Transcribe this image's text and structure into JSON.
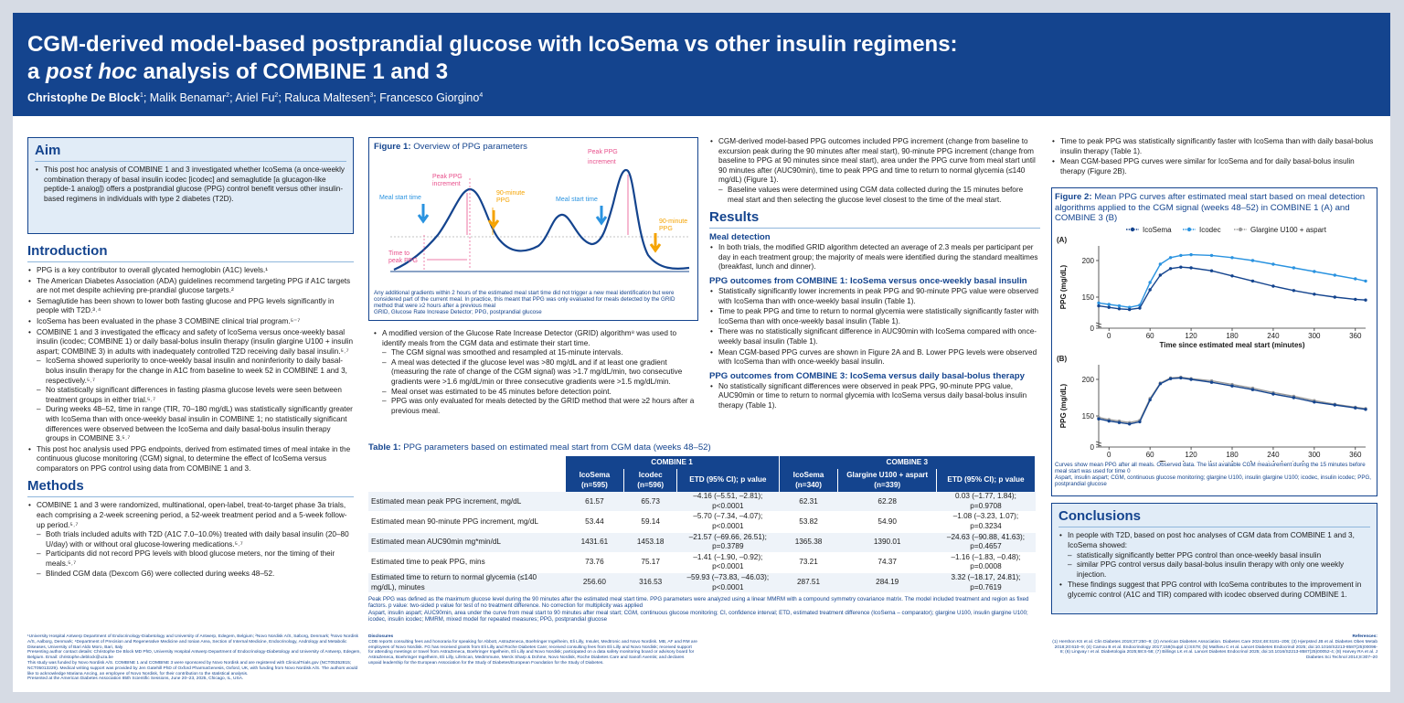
{
  "header": {
    "title_line1": "CGM-derived model-based postprandial glucose with IcoSema vs other insulin regimens:",
    "title_line2": "a post hoc analysis of COMBINE 1 and 3",
    "authors": [
      {
        "name": "Christophe De Block",
        "sup": "1"
      },
      {
        "name": "Malik Benamar",
        "sup": "2"
      },
      {
        "name": "Ariel Fu",
        "sup": "2"
      },
      {
        "name": "Raluca Maltesen",
        "sup": "3"
      },
      {
        "name": "Francesco Giorgino",
        "sup": "4"
      }
    ]
  },
  "aim": {
    "heading": "Aim",
    "text": "This post hoc analysis of COMBINE 1 and 3 investigated whether IcoSema (a once-weekly combination therapy of basal insulin icodec [icodec] and semaglutide [a glucagon-like peptide-1 analog]) offers a postprandial glucose (PPG) control benefit versus other insulin-based regimens in individuals with type 2 diabetes (T2D)."
  },
  "introduction": {
    "heading": "Introduction",
    "bullets": [
      "PPG is a key contributor to overall glycated hemoglobin (A1C) levels.¹",
      "The American Diabetes Association (ADA) guidelines recommend targeting PPG if A1C targets are not met despite achieving pre-prandial glucose targets.²",
      "Semaglutide has been shown to lower both fasting glucose and PPG levels significantly in people with T2D.³˒⁴",
      "IcoSema has been evaluated in the phase 3 COMBINE clinical trial program.⁵⁻⁷",
      "COMBINE 1 and 3 investigated the efficacy and safety of IcoSema versus once-weekly basal insulin (icodec; COMBINE 1) or daily basal-bolus insulin therapy (insulin glargine U100 + insulin aspart; COMBINE 3) in adults with inadequately controlled T2D receiving daily basal insulin.⁵˒⁷",
      "This post hoc analysis used PPG endpoints, derived from estimated times of meal intake in the continuous glucose monitoring (CGM) signal, to determine the effect of IcoSema versus comparators on PPG control using data from COMBINE 1 and 3."
    ],
    "sub_bullets": [
      "IcoSema showed superiority to once-weekly basal insulin and noninferiority to daily basal-bolus insulin therapy for the change in A1C from baseline to week 52 in COMBINE 1 and 3, respectively.⁵˒⁷",
      "No statistically significant differences in fasting plasma glucose levels were seen between treatment groups in either trial.⁵˒⁷",
      "During weeks 48–52, time in range (TIR, 70–180 mg/dL) was statistically significantly greater with IcoSema than with once-weekly basal insulin in COMBINE 1; no statistically significant differences were observed between the IcoSema and daily basal-bolus insulin therapy groups in COMBINE 3.⁵˒⁷"
    ]
  },
  "methods": {
    "heading": "Methods",
    "bullets": [
      "COMBINE 1 and 3 were randomized, multinational, open-label, treat-to-target phase 3a trials, each comprising a 2-week screening period, a 52-week treatment period and a 5-week follow-up period.⁵˒⁷"
    ],
    "sub_bullets": [
      "Both trials included adults with T2D (A1C 7.0–10.0%) treated with daily basal insulin (20–80 U/day) with or without oral glucose-lowering medications.⁵˒⁷",
      "Participants did not record PPG levels with blood glucose meters, nor the timing of their meals.⁵˒⁷",
      "Blinded CGM data (Dexcom G6) were collected during weeks 48–52."
    ]
  },
  "figure1": {
    "title": "Figure 1:",
    "subtitle": "Overview of PPG parameters",
    "labels": {
      "meal_start_1": "Meal start time",
      "meal_start_2": "Meal start time",
      "peak_increment": "Peak PPG increment",
      "min90": "90-minute PPG",
      "min90_2": "90-minute PPG",
      "time_to_peak": "Time to peak PPG",
      "peak_ppg": "Peak PPG increment"
    },
    "note": "Any additional gradients within 2 hours of the estimated meal start time did not trigger a new meal identification but were considered part of the current meal. In practice, this meant that PPG was only evaluated for meals detected by the GRID method that were ≥2 hours after a previous meal",
    "abbrev": "GRID, Glucose Rate Increase Detector; PPG, postprandial glucose"
  },
  "grid": {
    "bullet": "A modified version of the Glucose Rate Increase Detector (GRID) algorithm⁸ was used to identify meals from the CGM data and estimate their start time.",
    "sub_bullets": [
      "The CGM signal was smoothed and resampled at 15-minute intervals.",
      "A meal was detected if the glucose level was >80 mg/dL and if at least one gradient (measuring the rate of change of the CGM signal) was >1.7 mg/dL/min, two consecutive gradients were >1.6 mg/dL/min or three consecutive gradients were >1.5 mg/dL/min.",
      "Meal onset was estimated to be 45 minutes before detection point.",
      "PPG was only evaluated for meals detected by the GRID method that were ≥2 hours after a previous meal."
    ]
  },
  "table1": {
    "title": "Table 1:",
    "subtitle": "PPG parameters based on estimated meal start from CGM data (weeks 48–52)",
    "group1": "COMBINE 1",
    "group2": "COMBINE 3",
    "columns": [
      "IcoSema (n=595)",
      "Icodec (n=596)",
      "ETD (95% CI); p value",
      "IcoSema (n=340)",
      "Glargine U100 + aspart (n=339)",
      "ETD (95% CI); p value"
    ],
    "rows": [
      {
        "label": "Estimated mean peak PPG increment, mg/dL",
        "cells": [
          "61.57",
          "65.73",
          "–4.16 (–5.51, –2.81); p<0.0001",
          "62.31",
          "62.28",
          "0.03 (–1.77, 1.84); p=0.9708"
        ]
      },
      {
        "label": "Estimated mean 90-minute PPG increment, mg/dL",
        "cells": [
          "53.44",
          "59.14",
          "–5.70 (–7.34, –4.07); p<0.0001",
          "53.82",
          "54.90",
          "–1.08 (–3.23, 1.07); p=0.3234"
        ]
      },
      {
        "label": "Estimated mean AUC90min mg*min/dL",
        "cells": [
          "1431.61",
          "1453.18",
          "–21.57 (–69.66, 26.51); p=0.3789",
          "1365.38",
          "1390.01",
          "–24.63 (–90.88, 41.63); p=0.4657"
        ]
      },
      {
        "label": "Estimated time to peak PPG, mins",
        "cells": [
          "73.76",
          "75.17",
          "–1.41 (–1.90, –0.92); p<0.0001",
          "73.21",
          "74.37",
          "–1.16 (–1.83, –0.48); p=0.0008"
        ]
      },
      {
        "label": "Estimated time to return to normal glycemia (≤140 mg/dL), minutes",
        "cells": [
          "256.60",
          "316.53",
          "–59.93 (–73.83, –46.03); p<0.0001",
          "287.51",
          "284.19",
          "3.32 (–18.17, 24.81); p=0.7619"
        ]
      }
    ],
    "footnote": "Peak PPG was defined as the maximum glucose level during the 90 minutes after the estimated meal start time. PPG parameters were analyzed using a linear MMRM with a compound symmetry covariance matrix. The model included treatment and region as fixed factors. p value: two-sided p value for test of no treatment difference. No correction for multiplicity was applied",
    "abbrev": "Aspart, insulin aspart; AUC90min, area under the curve from meal start to 90 minutes after meal start; CGM, continuous glucose monitoring; CI, confidence interval; ETD, estimated treatment difference (IcoSema – comparator); glargine U100, insulin glargine U100; icodec, insulin icodec; MMRM, mixed model for repeated measures; PPG, postprandial glucose"
  },
  "col3": {
    "bullets": [
      "CGM-derived model-based PPG outcomes included PPG increment (change from baseline to excursion peak during the 90 minutes after meal start), 90-minute PPG increment (change from baseline to PPG at 90 minutes since meal start), area under the PPG curve from meal start until 90 minutes after (AUC90min), time to peak PPG and time to return to normal glycemia (≤140 mg/dL) (Figure 1)."
    ],
    "sub": "Baseline values were determined using CGM data collected during the 15 minutes before meal start and then selecting the glucose level closest to the time of the meal start.",
    "results_heading": "Results",
    "meal_heading": "Meal detection",
    "meal_bullet": "In both trials, the modified GRID algorithm detected an average of 2.3 meals per participant per day in each treatment group; the majority of meals were identified during the standard mealtimes (breakfast, lunch and dinner).",
    "c1_heading": "PPG outcomes from COMBINE 1: IcoSema versus once-weekly basal insulin",
    "c1_bullets": [
      "Statistically significantly lower increments in peak PPG and 90-minute PPG value were observed with IcoSema than with once-weekly basal insulin (Table 1).",
      "Time to peak PPG and time to return to normal glycemia were statistically significantly faster with IcoSema than with once-weekly basal insulin (Table 1).",
      "There was no statistically significant difference in AUC90min with IcoSema compared with once-weekly basal insulin (Table 1).",
      "Mean CGM-based PPG curves are shown in Figure 2A and B. Lower PPG levels were observed with IcoSema than with once-weekly basal insulin."
    ],
    "c3_heading": "PPG outcomes from COMBINE 3: IcoSema versus daily basal-bolus therapy",
    "c3_bullets": [
      "No statistically significant differences were observed in peak PPG, 90-minute PPG value, AUC90min or time to return to normal glycemia with IcoSema versus daily basal-bolus insulin therapy (Table 1)."
    ]
  },
  "col4": {
    "bullets": [
      "Time to peak PPG was statistically significantly faster with IcoSema than with daily basal-bolus insulin therapy (Table 1).",
      "Mean CGM-based PPG curves were similar for IcoSema and for daily basal-bolus insulin therapy (Figure 2B)."
    ]
  },
  "figure2": {
    "title": "Figure 2:",
    "subtitle": "Mean PPG curves after estimated meal start based on meal detection algorithms applied to the CGM signal (weeks 48–52) in COMBINE 1 (A) and COMBINE 3 (B)",
    "note": "Curves show mean PPG after all meals. Observed data. The last available CGM measurement during the 15 minutes before meal start was used for time 0",
    "abbrev": "Aspart, insulin aspart; CGM, continuous glucose monitoring; glargine U100, insulin glargine U100; icodec, insulin icodec; PPG, postprandial glucose"
  },
  "chart_data": [
    {
      "type": "line",
      "panel": "(A)",
      "xlabel": "Time since estimated meal start (minutes)",
      "ylabel": "PPG (mg/dL)",
      "xticks": [
        0,
        60,
        120,
        180,
        240,
        300,
        360
      ],
      "yticks": [
        0,
        150,
        200
      ],
      "xlim": [
        -15,
        375
      ],
      "ylim": [
        120,
        215
      ],
      "legend": "top",
      "series": [
        {
          "name": "IcoSema",
          "color": "#14448e",
          "x": [
            -15,
            0,
            15,
            30,
            45,
            60,
            75,
            90,
            105,
            120,
            150,
            180,
            210,
            240,
            270,
            300,
            330,
            360,
            375
          ],
          "y": [
            138,
            136,
            134,
            133,
            135,
            160,
            180,
            189,
            191,
            190,
            186,
            179,
            172,
            165,
            159,
            154,
            150,
            147,
            146
          ]
        },
        {
          "name": "Icodec",
          "color": "#2a93e0",
          "x": [
            -15,
            0,
            15,
            30,
            45,
            60,
            75,
            90,
            105,
            120,
            150,
            180,
            210,
            240,
            270,
            300,
            330,
            360,
            375
          ],
          "y": [
            142,
            140,
            138,
            136,
            139,
            170,
            195,
            204,
            207,
            208,
            207,
            204,
            200,
            195,
            190,
            185,
            180,
            175,
            172
          ]
        }
      ]
    },
    {
      "type": "line",
      "panel": "(B)",
      "xlabel": "Time since estimated meal start (minutes)",
      "ylabel": "PPG (mg/dL)",
      "xticks": [
        0,
        60,
        120,
        180,
        240,
        300,
        360
      ],
      "yticks": [
        0,
        150,
        200
      ],
      "xlim": [
        -15,
        375
      ],
      "ylim": [
        120,
        215
      ],
      "legend": "top",
      "series": [
        {
          "name": "IcoSema",
          "color": "#14448e",
          "x": [
            -15,
            0,
            15,
            30,
            45,
            60,
            75,
            90,
            105,
            120,
            150,
            180,
            210,
            240,
            270,
            300,
            330,
            360,
            375
          ],
          "y": [
            146,
            143,
            141,
            139,
            142,
            172,
            194,
            201,
            202,
            200,
            196,
            191,
            186,
            180,
            175,
            169,
            165,
            161,
            159
          ]
        },
        {
          "name": "Glargine U100 + aspart",
          "color": "#9a9a9a",
          "x": [
            -15,
            0,
            15,
            30,
            45,
            60,
            75,
            90,
            105,
            120,
            150,
            180,
            210,
            240,
            270,
            300,
            330,
            360,
            375
          ],
          "y": [
            148,
            145,
            143,
            141,
            144,
            174,
            195,
            202,
            203,
            201,
            198,
            193,
            188,
            182,
            177,
            171,
            166,
            162,
            160
          ]
        }
      ]
    }
  ],
  "conclusions": {
    "heading": "Conclusions",
    "bullet1": "In people with T2D, based on post hoc analyses of CGM data from COMBINE 1 and 3, IcoSema showed:",
    "subs": [
      "statistically significantly better PPG control than once-weekly basal insulin",
      "similar PPG control versus daily basal-bolus insulin therapy with only one weekly injection."
    ],
    "bullet2": "These findings suggest that PPG control with IcoSema contributes to the improvement in glycemic control (A1C and TIR) compared with icodec observed during COMBINE 1."
  },
  "footer": {
    "affiliations": "¹University Hospital Antwerp Department of Endocrinology-Diabetology and University of Antwerp, Edegem, Belgium; ²Novo Nordisk A/S, Søborg, Denmark; ³Novo Nordisk A/S, Aalborg, Denmark; ⁴Department of Precision and Regenerative Medicine and Ionian Area, Section of Internal Medicine, Endocrinology, Andrology and Metabolic Diseases, University of Bari Aldo Moro, Bari, Italy",
    "contact": "Presenting author contact details: Christophe De Block MD PhD, University Hospital Antwerp Department of Endocrinology-Diabetology and University of Antwerp, Edegem, Belgium. Email: christophe.deblock@uza.be",
    "funding": "This study was funded by Novo Nordisk A/S. COMBINE 1 and COMBINE 3 were sponsored by Novo Nordisk and are registered with ClinicalTrials.gov (NCT05352815; NCT05013229). Medical writing support was provided by Jen Gatehill PhD of Oxford PharmaGenesis, Oxford, UK, with funding from Novo Nordisk A/S. The authors would like to acknowledge Mariana Ancing, an employee of Novo Nordisk, for their contribution to the statistical analysis.",
    "presented": "Presented at the American Diabetes Association 85th Scientific Sessions, June 20–23, 2025, Chicago, IL, USA.",
    "disclosures_head": "Disclosures",
    "disclosures": "CDB reports consulting fees and honoraria for speaking for Abbott, AstraZeneca, Boehringer Ingelheim, Eli Lilly, Insulet, Medtronic and Novo Nordisk. MB, AF and RM are employees of Novo Nordisk. FG has received grants from Eli Lilly and Roche Diabetes Care; received consulting fees from Eli Lilly and Novo Nordisk; received support for attending meetings or travel from AstraZeneca, Boehringer Ingelheim, Eli Lilly and Novo Nordisk; participated on a data safety monitoring board or advisory board for AstraZeneca, Boehringer Ingelheim, Eli Lilly, LifeScan, Medimmune, Merck Sharp & Dohme, Novo Nordisk, Roche Diabetes Care and Sanofi Aventis; and declares unpaid leadership for the European Association for the Study of Diabetes/European Foundation for the Study of Diabetes.",
    "references_head": "References:",
    "references": "(1) Hershon KS et al. Clin Diabetes 2019;37:250–9; (2) American Diabetes Association. Diabetes Care 2024;48:S181–206; (3) Hjerpsted JB et al. Diabetes Obes Metab 2018;20:610–9; (4) Camou B et al. Endocrinology 2017;158(Suppl 1):SS78; (5) Mathieu C et al. Lancet Diabetes Endocrinol 2025; doi:10.1016/S2213-8587(25)00096-8; (6) Lingvay I et al. Diabetologia 2025;68:S-58; (7) Billings LK et al. Lancet Diabetes Endocrinol 2025; doi:10.1016/S2213-8587(25)00052-4; (8) Harvey RA et al. J Diabetes Sci Technol 2014;8:307–20"
  }
}
